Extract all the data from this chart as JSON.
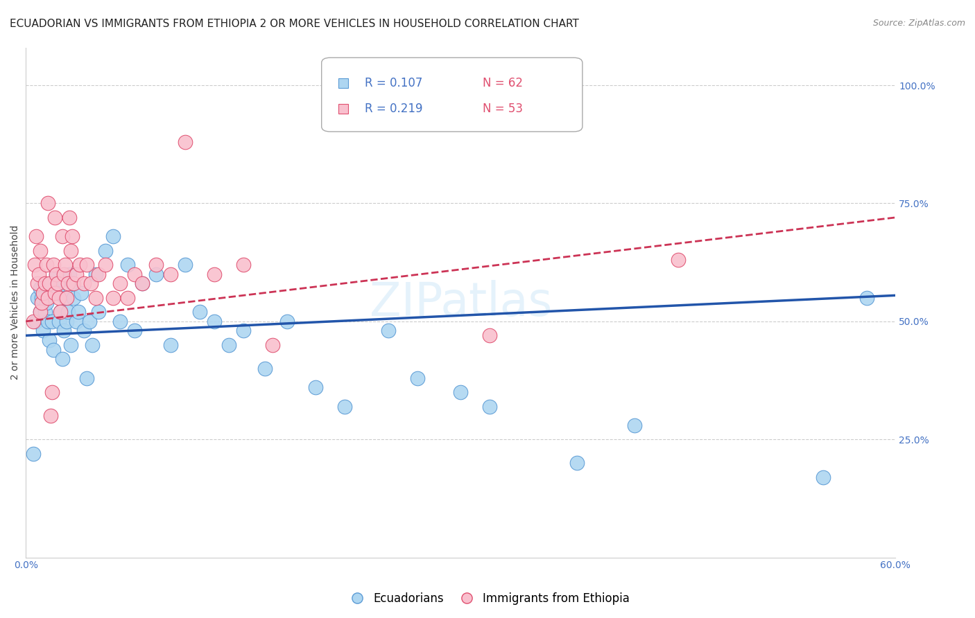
{
  "title": "ECUADORIAN VS IMMIGRANTS FROM ETHIOPIA 2 OR MORE VEHICLES IN HOUSEHOLD CORRELATION CHART",
  "source": "Source: ZipAtlas.com",
  "ylabel": "2 or more Vehicles in Household",
  "right_ytick_labels": [
    "100.0%",
    "75.0%",
    "50.0%",
    "25.0%"
  ],
  "right_ytick_values": [
    1.0,
    0.75,
    0.5,
    0.25
  ],
  "xlim": [
    0.0,
    0.6
  ],
  "ylim": [
    0.0,
    1.08
  ],
  "xtick_values": [
    0.0,
    0.1,
    0.2,
    0.3,
    0.4,
    0.5,
    0.6
  ],
  "gridline_color": "#cccccc",
  "background_color": "#ffffff",
  "series_blue": {
    "label": "Ecuadorians",
    "color": "#aed6f1",
    "edge_color": "#5b9bd5",
    "R": 0.107,
    "N": 62,
    "trend_color": "#2255aa",
    "trend_style": "-",
    "x": [
      0.005,
      0.007,
      0.008,
      0.01,
      0.01,
      0.011,
      0.012,
      0.013,
      0.014,
      0.015,
      0.016,
      0.017,
      0.018,
      0.019,
      0.02,
      0.021,
      0.022,
      0.023,
      0.024,
      0.025,
      0.026,
      0.027,
      0.028,
      0.029,
      0.03,
      0.031,
      0.032,
      0.033,
      0.035,
      0.036,
      0.038,
      0.04,
      0.042,
      0.044,
      0.046,
      0.048,
      0.05,
      0.055,
      0.06,
      0.065,
      0.07,
      0.075,
      0.08,
      0.09,
      0.1,
      0.11,
      0.12,
      0.13,
      0.14,
      0.15,
      0.165,
      0.18,
      0.2,
      0.22,
      0.25,
      0.27,
      0.3,
      0.32,
      0.38,
      0.42,
      0.55,
      0.58
    ],
    "y": [
      0.22,
      0.5,
      0.55,
      0.52,
      0.57,
      0.55,
      0.48,
      0.52,
      0.54,
      0.5,
      0.46,
      0.58,
      0.5,
      0.44,
      0.58,
      0.6,
      0.56,
      0.5,
      0.52,
      0.42,
      0.48,
      0.55,
      0.5,
      0.52,
      0.6,
      0.45,
      0.58,
      0.55,
      0.5,
      0.52,
      0.56,
      0.48,
      0.38,
      0.5,
      0.45,
      0.6,
      0.52,
      0.65,
      0.68,
      0.5,
      0.62,
      0.48,
      0.58,
      0.6,
      0.45,
      0.62,
      0.52,
      0.5,
      0.45,
      0.48,
      0.4,
      0.5,
      0.36,
      0.32,
      0.48,
      0.38,
      0.35,
      0.32,
      0.2,
      0.28,
      0.17,
      0.55
    ]
  },
  "series_pink": {
    "label": "Immigrants from Ethiopia",
    "color": "#f9c0ce",
    "edge_color": "#e05070",
    "R": 0.219,
    "N": 53,
    "trend_color": "#cc3355",
    "trend_style": "--",
    "x": [
      0.005,
      0.006,
      0.007,
      0.008,
      0.009,
      0.01,
      0.01,
      0.011,
      0.012,
      0.013,
      0.014,
      0.015,
      0.016,
      0.017,
      0.018,
      0.019,
      0.02,
      0.021,
      0.022,
      0.023,
      0.024,
      0.025,
      0.026,
      0.027,
      0.028,
      0.029,
      0.03,
      0.031,
      0.032,
      0.033,
      0.035,
      0.037,
      0.04,
      0.042,
      0.045,
      0.048,
      0.05,
      0.055,
      0.06,
      0.065,
      0.07,
      0.075,
      0.08,
      0.09,
      0.1,
      0.11,
      0.13,
      0.15,
      0.17,
      0.02,
      0.015,
      0.32,
      0.45
    ],
    "y": [
      0.5,
      0.62,
      0.68,
      0.58,
      0.6,
      0.52,
      0.65,
      0.54,
      0.56,
      0.58,
      0.62,
      0.55,
      0.58,
      0.3,
      0.35,
      0.62,
      0.56,
      0.6,
      0.58,
      0.55,
      0.52,
      0.68,
      0.6,
      0.62,
      0.55,
      0.58,
      0.72,
      0.65,
      0.68,
      0.58,
      0.6,
      0.62,
      0.58,
      0.62,
      0.58,
      0.55,
      0.6,
      0.62,
      0.55,
      0.58,
      0.55,
      0.6,
      0.58,
      0.62,
      0.6,
      0.88,
      0.6,
      0.62,
      0.45,
      0.72,
      0.75,
      0.47,
      0.63
    ]
  },
  "legend_R_color": "#4472c4",
  "legend_N_color": "#e05070",
  "title_fontsize": 11,
  "source_fontsize": 9,
  "axis_label_fontsize": 10,
  "tick_fontsize": 10,
  "legend_fontsize": 12
}
